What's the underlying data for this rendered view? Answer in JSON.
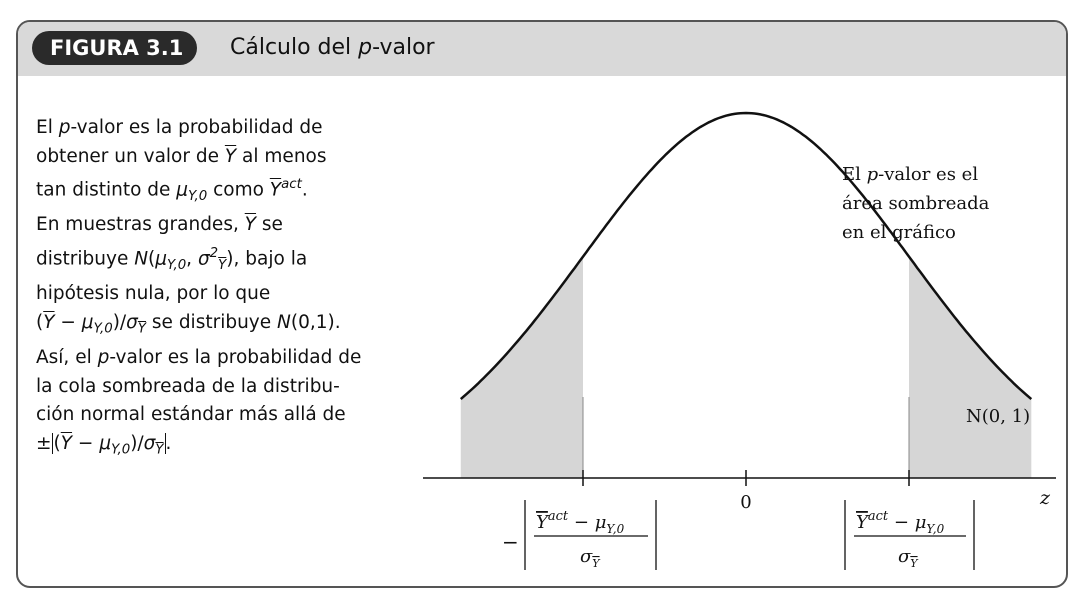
{
  "figure": {
    "badge": "FIGURA 3.1",
    "title_prefix": "Cálculo del ",
    "title_italic": "p",
    "title_suffix": "-valor"
  },
  "description": {
    "l1a": "El ",
    "l1p": "p",
    "l1b": "-valor es la probabilidad de",
    "l2a": "obtener un valor de ",
    "l2y": "Y",
    "l2b": " al menos",
    "l3a": "tan distinto de ",
    "l3mu": "μ",
    "l3sub": "Y,0",
    "l3b": " como ",
    "l3y": "Y",
    "l3sup": "act",
    "l3c": ".",
    "l4a": "En muestras grandes, ",
    "l4y": "Y",
    "l4b": " se",
    "l5a": "distribuye ",
    "l5n": "N",
    "l5b": "(",
    "l5mu": "μ",
    "l5sub": "Y,0",
    "l5c": ", ",
    "l5sig": "σ",
    "l5sup": "2",
    "l5subY": "Y",
    "l5d": "), bajo la",
    "l6": "hipótesis nula, por lo que",
    "l7a": "(",
    "l7y": "Y",
    "l7b": " − ",
    "l7mu": "μ",
    "l7sub": "Y,0",
    "l7c": ")/",
    "l7sig": "σ",
    "l7subY": "Y",
    "l7d": " se distribuye ",
    "l7n": "N",
    "l7e": "(0,1).",
    "l8a": "Así, el ",
    "l8p": "p",
    "l8b": "-valor es la probabilidad de",
    "l9": "la cola sombreada de la distribu-",
    "l10": "ción normal estándar más allá de",
    "l11a": "±",
    "l11b": "(",
    "l11y": "Y",
    "l11c": " − ",
    "l11mu": "μ",
    "l11sub": "Y,0",
    "l11d": ")/",
    "l11sig": "σ",
    "l11subY": "Y",
    "l11e": "."
  },
  "diagram": {
    "annotation": {
      "line1_a": "El ",
      "line1_p": "p",
      "line1_b": "-valor es el",
      "line2": "área sombreada",
      "line3": "en el gráfico"
    },
    "dist_label": "N(0, 1)",
    "zero_label": "0",
    "axis_label": "z",
    "bound_left_sign": "−",
    "bound_num_y": "Y",
    "bound_num_sup": "act",
    "bound_num_minus": " − ",
    "bound_num_mu": "μ",
    "bound_num_sub": "Y,0",
    "bound_den_sigma": "σ",
    "bound_den_sub": "Y",
    "curve_color": "#111111",
    "shade_color": "#d6d6d6"
  }
}
